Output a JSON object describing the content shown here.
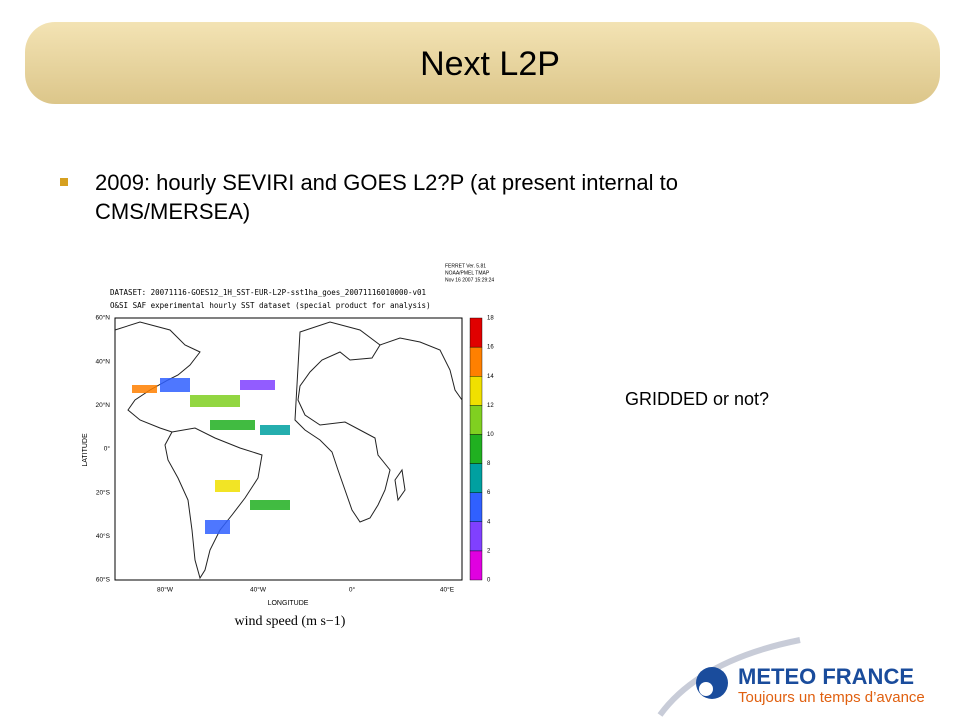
{
  "slide": {
    "title": "Next L2P",
    "bullets": [
      "2009: hourly SEVIRI and GOES L2?P (at present internal to",
      "CMS/MERSEA)"
    ],
    "side_note": "GRIDDED or not?",
    "figure": {
      "header": [
        "DATASET: 20071116-GOES12_1H_SST-EUR-L2P-sst1ha_goes_20071116010000-v01",
        "O&SI SAF experimental hourly SST dataset (special product for analysis)"
      ],
      "stamp": [
        "FERRET Ver. 5.81",
        "NOAA/PMEL TMAP",
        "Nov 16 2007 15:29:24"
      ],
      "y_axis_label": "LATITUDE",
      "x_axis_label": "LONGITUDE",
      "lat_labels": [
        "60°N",
        "40°N",
        "20°N",
        "0°",
        "20°S",
        "40°S",
        "60°S"
      ],
      "lon_labels": [
        "80°W",
        "40°W",
        "0°",
        "40°E"
      ],
      "colorbar": {
        "labels": [
          0,
          2,
          4,
          6,
          8,
          10,
          12,
          14,
          16,
          18
        ],
        "colors": [
          "#e000e0",
          "#8040ff",
          "#3060ff",
          "#00a0a0",
          "#20b020",
          "#80d020",
          "#f0e000",
          "#ff8000",
          "#e00000"
        ]
      },
      "caption": "wind speed (m s−1)"
    },
    "logo": {
      "name": "METEO FRANCE",
      "tagline": "Toujours un temps d’avance"
    }
  }
}
